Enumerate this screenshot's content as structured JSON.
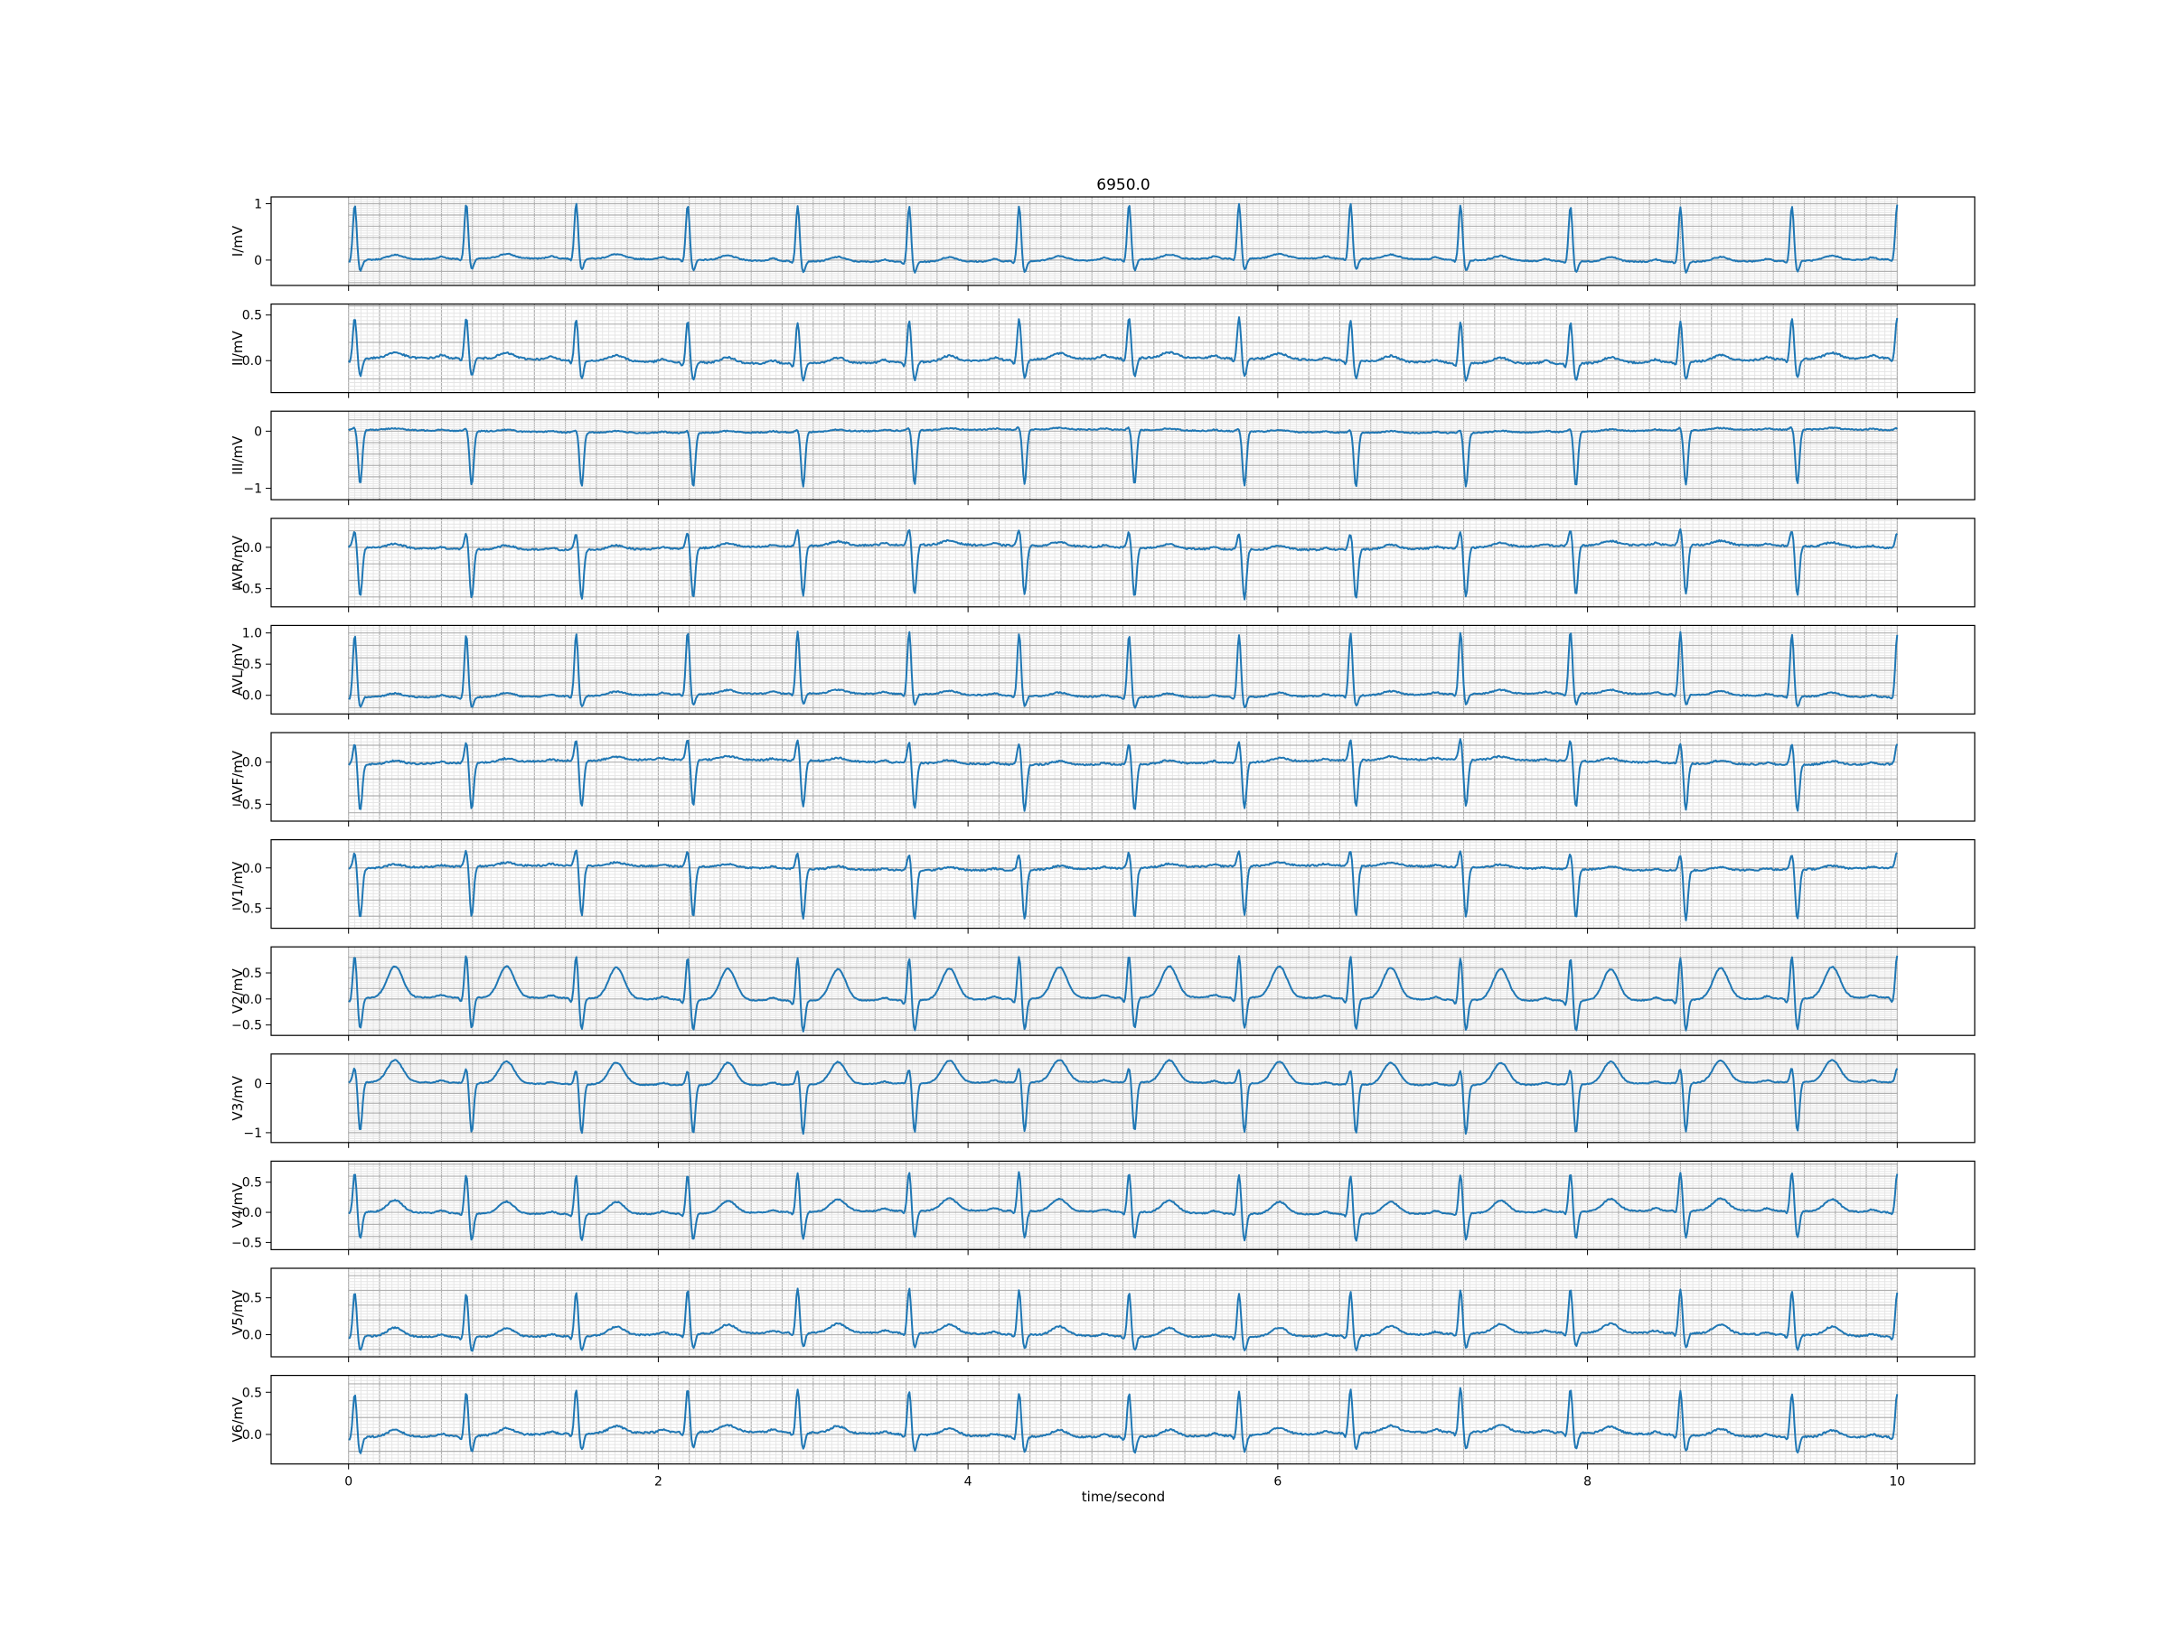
{
  "chart_data": {
    "type": "line",
    "title": "6950.0",
    "xlabel": "time/second",
    "xlim": [
      -0.5,
      10.5
    ],
    "xticks": [
      0,
      2,
      4,
      6,
      8,
      10
    ],
    "xtick_labels": [
      "0",
      "2",
      "4",
      "6",
      "8",
      "10"
    ],
    "duration": 10,
    "grid": "major 0.2 s, minor 0.04 s",
    "line_color": "#1f77b4",
    "beat_times": [
      0.04,
      0.76,
      1.47,
      2.19,
      2.9,
      3.62,
      4.33,
      5.04,
      5.75,
      6.47,
      7.18,
      7.89,
      8.6,
      9.32,
      10.0
    ],
    "leads": [
      {
        "name": "I",
        "ylabel": "I/mV",
        "ylim": [
          -0.45,
          1.12
        ],
        "yticks": [
          0,
          1
        ],
        "ytick_labels": [
          "0",
          "1"
        ],
        "r": 0.98,
        "q": -0.05,
        "s": -0.2,
        "t": 0.08,
        "p": 0.04
      },
      {
        "name": "II",
        "ylabel": "II/mV",
        "ylim": [
          -0.35,
          0.62
        ],
        "yticks": [
          0,
          0.5
        ],
        "ytick_labels": [
          "0.0",
          "0.5"
        ],
        "r": 0.45,
        "q": -0.05,
        "s": -0.2,
        "t": 0.06,
        "p": 0.03
      },
      {
        "name": "III",
        "ylabel": "III/mV",
        "ylim": [
          -1.2,
          0.35
        ],
        "yticks": [
          -1,
          0
        ],
        "ytick_labels": [
          "−1",
          "0"
        ],
        "r": 0.05,
        "q": 0.0,
        "s": -0.95,
        "t": 0.03,
        "p": 0.02
      },
      {
        "name": "AVR",
        "ylabel": "AVR/mV",
        "ylim": [
          -0.72,
          0.35
        ],
        "yticks": [
          -0.5,
          0.0
        ],
        "ytick_labels": [
          "−0.5",
          "0.0"
        ],
        "r": 0.2,
        "q": 0.0,
        "s": -0.6,
        "t": 0.05,
        "p": 0.02
      },
      {
        "name": "AVL",
        "ylabel": "AVL/mV",
        "ylim": [
          -0.3,
          1.12
        ],
        "yticks": [
          0,
          0.5,
          1
        ],
        "ytick_labels": [
          "0.0",
          "0.5",
          "1.0"
        ],
        "r": 1.0,
        "q": -0.05,
        "s": -0.18,
        "t": 0.06,
        "p": 0.03
      },
      {
        "name": "AVF",
        "ylabel": "AVF/mV",
        "ylim": [
          -0.7,
          0.35
        ],
        "yticks": [
          -0.5,
          0.0
        ],
        "ytick_labels": [
          "−0.5",
          "0.0"
        ],
        "r": 0.25,
        "q": 0.0,
        "s": -0.55,
        "t": 0.04,
        "p": 0.02
      },
      {
        "name": "V1",
        "ylabel": "V1/mV",
        "ylim": [
          -0.75,
          0.35
        ],
        "yticks": [
          -0.5,
          0.0
        ],
        "ytick_labels": [
          "−0.5",
          "0.0"
        ],
        "r": 0.2,
        "q": 0.0,
        "s": -0.62,
        "t": 0.04,
        "p": 0.02
      },
      {
        "name": "V2",
        "ylabel": "V2/mV",
        "ylim": [
          -0.7,
          1.0
        ],
        "yticks": [
          -0.5,
          0.0,
          0.5
        ],
        "ytick_labels": [
          "−0.5",
          "0.0",
          "0.5"
        ],
        "r": 0.82,
        "q": -0.1,
        "s": -0.6,
        "t": 0.6,
        "p": 0.05
      },
      {
        "name": "V3",
        "ylabel": "V3/mV",
        "ylim": [
          -1.2,
          0.6
        ],
        "yticks": [
          -1,
          0
        ],
        "ytick_labels": [
          "−1",
          "0"
        ],
        "r": 0.3,
        "q": 0.0,
        "s": -1.0,
        "t": 0.45,
        "p": 0.04
      },
      {
        "name": "V4",
        "ylabel": "V4/mV",
        "ylim": [
          -0.62,
          0.85
        ],
        "yticks": [
          -0.5,
          0.0,
          0.5
        ],
        "ytick_labels": [
          "−0.5",
          "0.0",
          "0.5"
        ],
        "r": 0.65,
        "q": -0.05,
        "s": -0.45,
        "t": 0.2,
        "p": 0.04
      },
      {
        "name": "V5",
        "ylabel": "V5/mV",
        "ylim": [
          -0.3,
          0.9
        ],
        "yticks": [
          0.0,
          0.5
        ],
        "ytick_labels": [
          "0.0",
          "0.5"
        ],
        "r": 0.6,
        "q": -0.05,
        "s": -0.2,
        "t": 0.12,
        "p": 0.03
      },
      {
        "name": "V6",
        "ylabel": "V6/mV",
        "ylim": [
          -0.35,
          0.7
        ],
        "yticks": [
          0.0,
          0.5
        ],
        "ytick_labels": [
          "0.0",
          "0.5"
        ],
        "r": 0.52,
        "q": -0.05,
        "s": -0.2,
        "t": 0.08,
        "p": 0.03
      }
    ]
  }
}
